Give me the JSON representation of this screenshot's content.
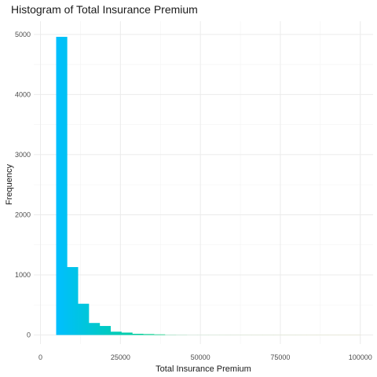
{
  "chart_data": {
    "type": "bar",
    "title": "Histogram of Total Insurance Premium",
    "xlabel": "Total Insurance Premium",
    "ylabel": "Frequency",
    "xlim": [
      -2100,
      104000
    ],
    "ylim": [
      -150,
      5220
    ],
    "x_ticks": [
      0,
      25000,
      50000,
      75000,
      100000
    ],
    "y_ticks": [
      0,
      1000,
      2000,
      3000,
      4000,
      5000
    ],
    "x_tick_labels": [
      "0",
      "25000",
      "50000",
      "75000",
      "100000"
    ],
    "y_tick_labels": [
      "0",
      "1000",
      "2000",
      "3000",
      "4000",
      "5000"
    ],
    "grid": true,
    "legend": "none",
    "bin_width": 3400,
    "bins": [
      {
        "x_start": 4900,
        "x_end": 8300,
        "count": 4960
      },
      {
        "x_start": 8300,
        "x_end": 11700,
        "count": 1130
      },
      {
        "x_start": 11700,
        "x_end": 15100,
        "count": 520
      },
      {
        "x_start": 15100,
        "x_end": 18500,
        "count": 200
      },
      {
        "x_start": 18500,
        "x_end": 21900,
        "count": 150
      },
      {
        "x_start": 21900,
        "x_end": 25300,
        "count": 55
      },
      {
        "x_start": 25300,
        "x_end": 28700,
        "count": 40
      },
      {
        "x_start": 28700,
        "x_end": 32100,
        "count": 20
      },
      {
        "x_start": 32100,
        "x_end": 35500,
        "count": 15
      },
      {
        "x_start": 35500,
        "x_end": 38900,
        "count": 10
      },
      {
        "x_start": 38900,
        "x_end": 42300,
        "count": 3
      },
      {
        "x_start": 42300,
        "x_end": 45700,
        "count": 2
      },
      {
        "x_start": 45700,
        "x_end": 49100,
        "count": 1
      },
      {
        "x_start": 49100,
        "x_end": 52500,
        "count": 1
      },
      {
        "x_start": 52500,
        "x_end": 55900,
        "count": 1
      },
      {
        "x_start": 55900,
        "x_end": 59300,
        "count": 1
      },
      {
        "x_start": 59300,
        "x_end": 62700,
        "count": 1
      },
      {
        "x_start": 62700,
        "x_end": 66100,
        "count": 1
      },
      {
        "x_start": 66100,
        "x_end": 69500,
        "count": 1
      },
      {
        "x_start": 69500,
        "x_end": 72900,
        "count": 1
      },
      {
        "x_start": 72900,
        "x_end": 76300,
        "count": 1
      },
      {
        "x_start": 76300,
        "x_end": 79700,
        "count": 1
      },
      {
        "x_start": 79700,
        "x_end": 83100,
        "count": 1
      },
      {
        "x_start": 83100,
        "x_end": 86500,
        "count": 1
      },
      {
        "x_start": 86500,
        "x_end": 89900,
        "count": 1
      },
      {
        "x_start": 89900,
        "x_end": 93300,
        "count": 1
      },
      {
        "x_start": 93300,
        "x_end": 96700,
        "count": 1
      },
      {
        "x_start": 96700,
        "x_end": 100100,
        "count": 1
      }
    ],
    "fill_gradient": [
      "#00bfff",
      "#00d48a",
      "#5ac800",
      "#c0c000"
    ]
  }
}
